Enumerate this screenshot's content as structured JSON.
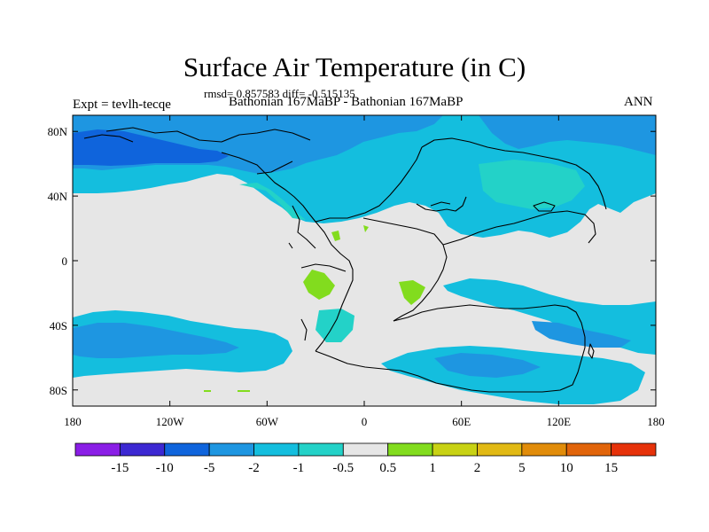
{
  "title": "Surface Air Temperature (in C)",
  "stats": "rmsd= 0.857583 diff= -0.515135",
  "experiment": "Expt = tevlh-tecqe",
  "subtitle": "Bathonian 167MaBP - Bathonian 167MaBP",
  "season": "ANN",
  "map": {
    "lon_range": [
      -180,
      180
    ],
    "lat_range": [
      -90,
      90
    ],
    "lat_ticks": [
      {
        "value": 80,
        "label": "80N"
      },
      {
        "value": 40,
        "label": "40N"
      },
      {
        "value": 0,
        "label": "0"
      },
      {
        "value": -40,
        "label": "40S"
      },
      {
        "value": -80,
        "label": "80S"
      }
    ],
    "lon_ticks": [
      {
        "value": -180,
        "label": "180"
      },
      {
        "value": -120,
        "label": "120W"
      },
      {
        "value": -60,
        "label": "60W"
      },
      {
        "value": 0,
        "label": "0"
      },
      {
        "value": 60,
        "label": "60E"
      },
      {
        "value": 120,
        "label": "120E"
      },
      {
        "value": 180,
        "label": "180"
      }
    ]
  },
  "colorbar": {
    "labels": [
      "-15",
      "-10",
      "-5",
      "-2",
      "-1",
      "-0.5",
      "0.5",
      "1",
      "2",
      "5",
      "10",
      "15"
    ],
    "colors": [
      "#8a1ee6",
      "#3c28d2",
      "#0f64dc",
      "#1e96e1",
      "#14bede",
      "#23d2c8",
      "#e6e6e6",
      "#82dc1e",
      "#c8d214",
      "#e1b914",
      "#e18c0a",
      "#e1640a",
      "#e6320a"
    ]
  },
  "colors": {
    "neutral": "#e6e6e6",
    "cool_1": "#14bede",
    "cool_2": "#1e96e1",
    "cool_3": "#0f64dc",
    "mint": "#23d2c8",
    "warm_1": "#82dc1e",
    "coast": "#000000"
  }
}
